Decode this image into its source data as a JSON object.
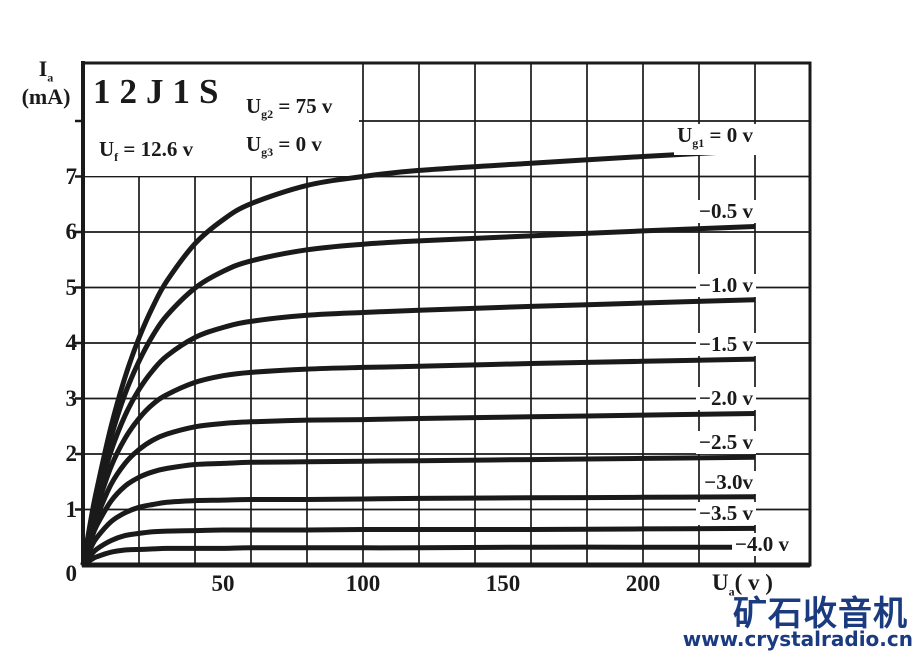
{
  "page": {
    "background": "#ffffff",
    "ink": "#1a1a1a"
  },
  "chart_data": {
    "type": "line",
    "title": "12J1S",
    "xlabel": "Ua ( v )",
    "ylabel": "Ia (mA)",
    "origin_label": "0",
    "x_axis": {
      "name_main": "U",
      "name_sub": "a",
      "name_unit": "( v )",
      "tick_labels": [
        "50",
        "100",
        "150",
        "200"
      ],
      "tick_values_v": [
        50,
        100,
        150,
        200
      ],
      "range_v": [
        0,
        260
      ],
      "gridline_step_v": 20
    },
    "y_axis": {
      "name_main": "I",
      "name_sub": "a",
      "name_unit": "(mA)",
      "tick_labels": [
        "7",
        "6",
        "5",
        "4",
        "3",
        "2",
        "1",
        "0"
      ],
      "tick_values_ma": [
        7,
        6,
        5,
        4,
        3,
        2,
        1,
        0
      ],
      "range_ma": [
        0,
        9.1
      ],
      "gridline_step_ma": 1
    },
    "conditions": [
      {
        "main": "U",
        "sub": "f",
        "rest": " = 12.6 v"
      },
      {
        "main": "U",
        "sub": "g2",
        "rest": " = 75 v"
      },
      {
        "main": "U",
        "sub": "g3",
        "rest": " = 0 v"
      }
    ],
    "grid": {
      "vertical_every_v": 20,
      "horizontal_every_ma": 1,
      "curves_end_at_v": 240
    },
    "sample_voltages_v": [
      0,
      3,
      5,
      10,
      15,
      20,
      25,
      30,
      40,
      50,
      60,
      80,
      100,
      120,
      160,
      200,
      240
    ],
    "series": [
      {
        "label": "Ug1 = 0 v",
        "grid_bias_v": 0,
        "label_outside": false,
        "values_ma": [
          0,
          0.87,
          1.38,
          2.49,
          3.38,
          4.09,
          4.66,
          5.12,
          5.79,
          6.22,
          6.51,
          6.84,
          7.0,
          7.11,
          7.24,
          7.36,
          7.47
        ]
      },
      {
        "label": "−0.5 v",
        "grid_bias_v": -0.5,
        "label_outside": false,
        "values_ma": [
          0,
          0.82,
          1.3,
          2.3,
          3.08,
          3.67,
          4.14,
          4.5,
          4.99,
          5.29,
          5.48,
          5.68,
          5.78,
          5.84,
          5.93,
          6.02,
          6.1
        ]
      },
      {
        "label": "−1.0 v",
        "grid_bias_v": -1.0,
        "label_outside": false,
        "values_ma": [
          0,
          0.75,
          1.18,
          2.05,
          2.69,
          3.16,
          3.51,
          3.77,
          4.1,
          4.28,
          4.39,
          4.5,
          4.55,
          4.59,
          4.66,
          4.72,
          4.78
        ]
      },
      {
        "label": "−1.5 v",
        "grid_bias_v": -1.5,
        "label_outside": false,
        "values_ma": [
          0,
          0.67,
          1.04,
          1.77,
          2.28,
          2.64,
          2.9,
          3.07,
          3.29,
          3.41,
          3.47,
          3.53,
          3.56,
          3.58,
          3.63,
          3.67,
          3.71
        ]
      },
      {
        "label": "−2.0 v",
        "grid_bias_v": -2.0,
        "label_outside": false,
        "values_ma": [
          0,
          0.56,
          0.87,
          1.45,
          1.83,
          2.08,
          2.25,
          2.36,
          2.49,
          2.55,
          2.58,
          2.61,
          2.62,
          2.64,
          2.67,
          2.7,
          2.73
        ]
      },
      {
        "label": "−2.5 v",
        "grid_bias_v": -2.5,
        "label_outside": false,
        "values_ma": [
          0,
          0.47,
          0.72,
          1.15,
          1.42,
          1.58,
          1.68,
          1.74,
          1.81,
          1.83,
          1.85,
          1.86,
          1.87,
          1.88,
          1.9,
          1.92,
          1.94
        ]
      },
      {
        "label": "−3.0v",
        "grid_bias_v": -3.0,
        "label_outside": false,
        "values_ma": [
          0,
          0.33,
          0.5,
          0.78,
          0.94,
          1.04,
          1.09,
          1.13,
          1.16,
          1.17,
          1.18,
          1.18,
          1.19,
          1.2,
          1.21,
          1.22,
          1.23
        ]
      },
      {
        "label": "−3.5 v",
        "grid_bias_v": -3.5,
        "label_outside": false,
        "values_ma": [
          0,
          0.19,
          0.29,
          0.44,
          0.53,
          0.57,
          0.6,
          0.61,
          0.62,
          0.63,
          0.63,
          0.63,
          0.64,
          0.64,
          0.64,
          0.65,
          0.66
        ]
      },
      {
        "label": "−4.0 v",
        "grid_bias_v": -4.0,
        "label_outside": true,
        "values_ma": [
          0,
          0.1,
          0.15,
          0.23,
          0.27,
          0.28,
          0.29,
          0.3,
          0.3,
          0.3,
          0.31,
          0.31,
          0.31,
          0.31,
          0.32,
          0.32,
          0.32
        ]
      }
    ]
  },
  "watermark": {
    "text_cn": "矿石收音机",
    "text_url": "www.crystalradio.cn",
    "color": "#1b3b80"
  }
}
